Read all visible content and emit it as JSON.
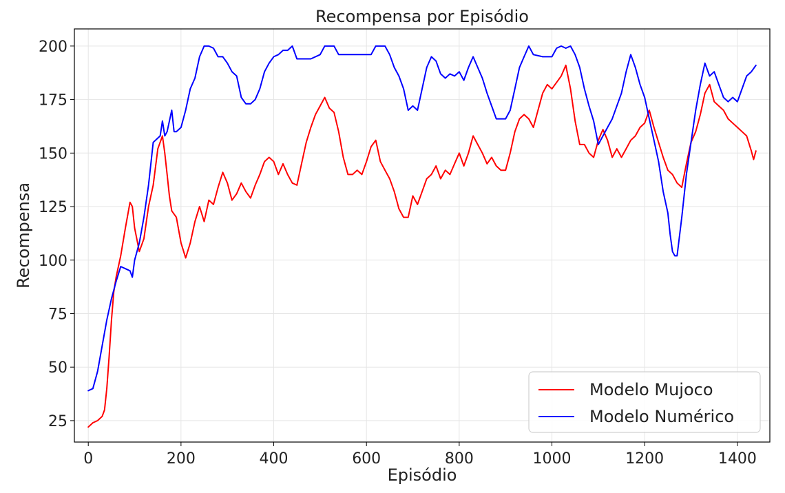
{
  "chart_data": {
    "type": "line",
    "title": "Recompensa por Episódio",
    "xlabel": "Episódio",
    "ylabel": "Recompensa",
    "xlim": [
      -30,
      1470
    ],
    "ylim": [
      15,
      208
    ],
    "xticks": [
      0,
      200,
      400,
      600,
      800,
      1000,
      1200,
      1400
    ],
    "yticks": [
      25,
      50,
      75,
      100,
      125,
      150,
      175,
      200
    ],
    "grid": true,
    "legend_position": "bottom-right",
    "series": [
      {
        "name": "Modelo Mujoco",
        "color": "#ff0000",
        "points": [
          [
            0,
            22
          ],
          [
            10,
            24
          ],
          [
            20,
            25
          ],
          [
            30,
            27
          ],
          [
            35,
            30
          ],
          [
            40,
            40
          ],
          [
            45,
            55
          ],
          [
            50,
            72
          ],
          [
            55,
            85
          ],
          [
            60,
            92
          ],
          [
            70,
            102
          ],
          [
            80,
            115
          ],
          [
            90,
            127
          ],
          [
            95,
            125
          ],
          [
            100,
            115
          ],
          [
            110,
            104
          ],
          [
            120,
            110
          ],
          [
            130,
            125
          ],
          [
            140,
            135
          ],
          [
            150,
            152
          ],
          [
            160,
            158
          ],
          [
            165,
            150
          ],
          [
            170,
            140
          ],
          [
            175,
            130
          ],
          [
            180,
            123
          ],
          [
            190,
            120
          ],
          [
            200,
            108
          ],
          [
            210,
            101
          ],
          [
            220,
            108
          ],
          [
            230,
            118
          ],
          [
            240,
            125
          ],
          [
            250,
            118
          ],
          [
            260,
            128
          ],
          [
            270,
            126
          ],
          [
            280,
            134
          ],
          [
            290,
            141
          ],
          [
            300,
            136
          ],
          [
            310,
            128
          ],
          [
            320,
            131
          ],
          [
            330,
            136
          ],
          [
            340,
            132
          ],
          [
            350,
            129
          ],
          [
            360,
            135
          ],
          [
            370,
            140
          ],
          [
            380,
            146
          ],
          [
            390,
            148
          ],
          [
            400,
            146
          ],
          [
            410,
            140
          ],
          [
            420,
            145
          ],
          [
            430,
            140
          ],
          [
            440,
            136
          ],
          [
            450,
            135
          ],
          [
            460,
            145
          ],
          [
            470,
            155
          ],
          [
            480,
            162
          ],
          [
            490,
            168
          ],
          [
            500,
            172
          ],
          [
            510,
            176
          ],
          [
            520,
            171
          ],
          [
            530,
            169
          ],
          [
            540,
            160
          ],
          [
            550,
            148
          ],
          [
            560,
            140
          ],
          [
            570,
            140
          ],
          [
            580,
            142
          ],
          [
            590,
            140
          ],
          [
            600,
            146
          ],
          [
            610,
            153
          ],
          [
            620,
            156
          ],
          [
            630,
            146
          ],
          [
            640,
            142
          ],
          [
            650,
            138
          ],
          [
            660,
            132
          ],
          [
            670,
            124
          ],
          [
            680,
            120
          ],
          [
            690,
            120
          ],
          [
            700,
            130
          ],
          [
            710,
            126
          ],
          [
            720,
            132
          ],
          [
            730,
            138
          ],
          [
            740,
            140
          ],
          [
            750,
            144
          ],
          [
            760,
            138
          ],
          [
            770,
            142
          ],
          [
            780,
            140
          ],
          [
            790,
            145
          ],
          [
            800,
            150
          ],
          [
            810,
            144
          ],
          [
            820,
            150
          ],
          [
            830,
            158
          ],
          [
            840,
            154
          ],
          [
            850,
            150
          ],
          [
            860,
            145
          ],
          [
            870,
            148
          ],
          [
            880,
            144
          ],
          [
            890,
            142
          ],
          [
            900,
            142
          ],
          [
            910,
            150
          ],
          [
            920,
            160
          ],
          [
            930,
            166
          ],
          [
            940,
            168
          ],
          [
            950,
            166
          ],
          [
            960,
            162
          ],
          [
            970,
            170
          ],
          [
            980,
            178
          ],
          [
            990,
            182
          ],
          [
            1000,
            180
          ],
          [
            1010,
            183
          ],
          [
            1020,
            186
          ],
          [
            1030,
            191
          ],
          [
            1040,
            180
          ],
          [
            1050,
            165
          ],
          [
            1060,
            154
          ],
          [
            1070,
            154
          ],
          [
            1080,
            150
          ],
          [
            1090,
            148
          ],
          [
            1100,
            156
          ],
          [
            1110,
            161
          ],
          [
            1120,
            156
          ],
          [
            1130,
            148
          ],
          [
            1140,
            152
          ],
          [
            1150,
            148
          ],
          [
            1160,
            152
          ],
          [
            1170,
            156
          ],
          [
            1180,
            158
          ],
          [
            1190,
            162
          ],
          [
            1200,
            164
          ],
          [
            1210,
            170
          ],
          [
            1220,
            162
          ],
          [
            1230,
            155
          ],
          [
            1240,
            148
          ],
          [
            1250,
            142
          ],
          [
            1260,
            140
          ],
          [
            1270,
            136
          ],
          [
            1280,
            134
          ],
          [
            1290,
            145
          ],
          [
            1300,
            155
          ],
          [
            1310,
            160
          ],
          [
            1320,
            168
          ],
          [
            1330,
            178
          ],
          [
            1340,
            182
          ],
          [
            1350,
            174
          ],
          [
            1360,
            172
          ],
          [
            1370,
            170
          ],
          [
            1380,
            166
          ],
          [
            1390,
            164
          ],
          [
            1400,
            162
          ],
          [
            1410,
            160
          ],
          [
            1420,
            158
          ],
          [
            1430,
            151
          ],
          [
            1435,
            147
          ],
          [
            1440,
            151
          ]
        ]
      },
      {
        "name": "Modelo Numérico",
        "color": "#0000ff",
        "points": [
          [
            0,
            39
          ],
          [
            10,
            40
          ],
          [
            20,
            48
          ],
          [
            30,
            60
          ],
          [
            40,
            72
          ],
          [
            50,
            82
          ],
          [
            60,
            90
          ],
          [
            70,
            97
          ],
          [
            80,
            96
          ],
          [
            90,
            95
          ],
          [
            95,
            92
          ],
          [
            100,
            100
          ],
          [
            110,
            108
          ],
          [
            120,
            120
          ],
          [
            130,
            135
          ],
          [
            140,
            155
          ],
          [
            150,
            157
          ],
          [
            155,
            158
          ],
          [
            160,
            165
          ],
          [
            165,
            158
          ],
          [
            170,
            160
          ],
          [
            180,
            170
          ],
          [
            185,
            160
          ],
          [
            190,
            160
          ],
          [
            200,
            162
          ],
          [
            210,
            170
          ],
          [
            220,
            180
          ],
          [
            230,
            185
          ],
          [
            240,
            195
          ],
          [
            250,
            200
          ],
          [
            260,
            200
          ],
          [
            270,
            199
          ],
          [
            280,
            195
          ],
          [
            290,
            195
          ],
          [
            300,
            192
          ],
          [
            310,
            188
          ],
          [
            320,
            186
          ],
          [
            330,
            176
          ],
          [
            340,
            173
          ],
          [
            350,
            173
          ],
          [
            360,
            175
          ],
          [
            370,
            180
          ],
          [
            380,
            188
          ],
          [
            390,
            192
          ],
          [
            400,
            195
          ],
          [
            410,
            196
          ],
          [
            420,
            198
          ],
          [
            430,
            198
          ],
          [
            440,
            200
          ],
          [
            450,
            194
          ],
          [
            460,
            194
          ],
          [
            480,
            194
          ],
          [
            500,
            196
          ],
          [
            510,
            200
          ],
          [
            530,
            200
          ],
          [
            540,
            196
          ],
          [
            560,
            196
          ],
          [
            580,
            196
          ],
          [
            590,
            196
          ],
          [
            600,
            196
          ],
          [
            610,
            196
          ],
          [
            620,
            200
          ],
          [
            640,
            200
          ],
          [
            650,
            196
          ],
          [
            660,
            190
          ],
          [
            670,
            186
          ],
          [
            680,
            180
          ],
          [
            690,
            170
          ],
          [
            700,
            172
          ],
          [
            710,
            170
          ],
          [
            720,
            180
          ],
          [
            730,
            190
          ],
          [
            740,
            195
          ],
          [
            750,
            193
          ],
          [
            760,
            187
          ],
          [
            770,
            185
          ],
          [
            780,
            187
          ],
          [
            790,
            186
          ],
          [
            800,
            188
          ],
          [
            810,
            184
          ],
          [
            820,
            190
          ],
          [
            830,
            195
          ],
          [
            840,
            190
          ],
          [
            850,
            185
          ],
          [
            860,
            178
          ],
          [
            870,
            172
          ],
          [
            880,
            166
          ],
          [
            900,
            166
          ],
          [
            910,
            170
          ],
          [
            920,
            180
          ],
          [
            930,
            190
          ],
          [
            940,
            195
          ],
          [
            950,
            200
          ],
          [
            960,
            196
          ],
          [
            980,
            195
          ],
          [
            1000,
            195
          ],
          [
            1010,
            199
          ],
          [
            1020,
            200
          ],
          [
            1030,
            199
          ],
          [
            1040,
            200
          ],
          [
            1050,
            196
          ],
          [
            1060,
            190
          ],
          [
            1070,
            180
          ],
          [
            1080,
            172
          ],
          [
            1090,
            165
          ],
          [
            1100,
            154
          ],
          [
            1110,
            158
          ],
          [
            1120,
            162
          ],
          [
            1130,
            166
          ],
          [
            1140,
            172
          ],
          [
            1150,
            178
          ],
          [
            1160,
            188
          ],
          [
            1170,
            196
          ],
          [
            1180,
            190
          ],
          [
            1190,
            182
          ],
          [
            1200,
            176
          ],
          [
            1210,
            166
          ],
          [
            1220,
            156
          ],
          [
            1230,
            146
          ],
          [
            1240,
            132
          ],
          [
            1250,
            122
          ],
          [
            1255,
            112
          ],
          [
            1260,
            104
          ],
          [
            1265,
            102
          ],
          [
            1270,
            102
          ],
          [
            1280,
            120
          ],
          [
            1290,
            140
          ],
          [
            1300,
            155
          ],
          [
            1310,
            170
          ],
          [
            1320,
            182
          ],
          [
            1330,
            192
          ],
          [
            1340,
            186
          ],
          [
            1350,
            188
          ],
          [
            1360,
            182
          ],
          [
            1370,
            176
          ],
          [
            1380,
            174
          ],
          [
            1390,
            176
          ],
          [
            1400,
            174
          ],
          [
            1410,
            180
          ],
          [
            1420,
            186
          ],
          [
            1430,
            188
          ],
          [
            1440,
            191
          ]
        ]
      }
    ]
  }
}
